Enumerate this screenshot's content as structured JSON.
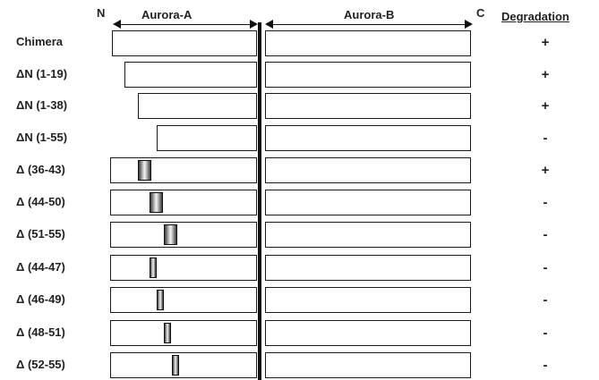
{
  "header": {
    "n_terminus": "N",
    "c_terminus": "C",
    "aurora_a": "Aurora-A",
    "aurora_b": "Aurora-B",
    "degradation": "Degradation"
  },
  "rows": [
    {
      "label": "Chimera",
      "degradation": "+"
    },
    {
      "label": "ΔN (1-19)",
      "degradation": "+"
    },
    {
      "label": "ΔN (1-38)",
      "degradation": "+"
    },
    {
      "label": "ΔN (1-55)",
      "degradation": "-"
    },
    {
      "label": "Δ (36-43)",
      "degradation": "+"
    },
    {
      "label": "Δ (44-50)",
      "degradation": "-"
    },
    {
      "label": "Δ (51-55)",
      "degradation": "-"
    },
    {
      "label": "Δ (44-47)",
      "degradation": "-"
    },
    {
      "label": "Δ (46-49)",
      "degradation": "-"
    },
    {
      "label": "Δ (48-51)",
      "degradation": "-"
    },
    {
      "label": "Δ (52-55)",
      "degradation": "-"
    }
  ]
}
